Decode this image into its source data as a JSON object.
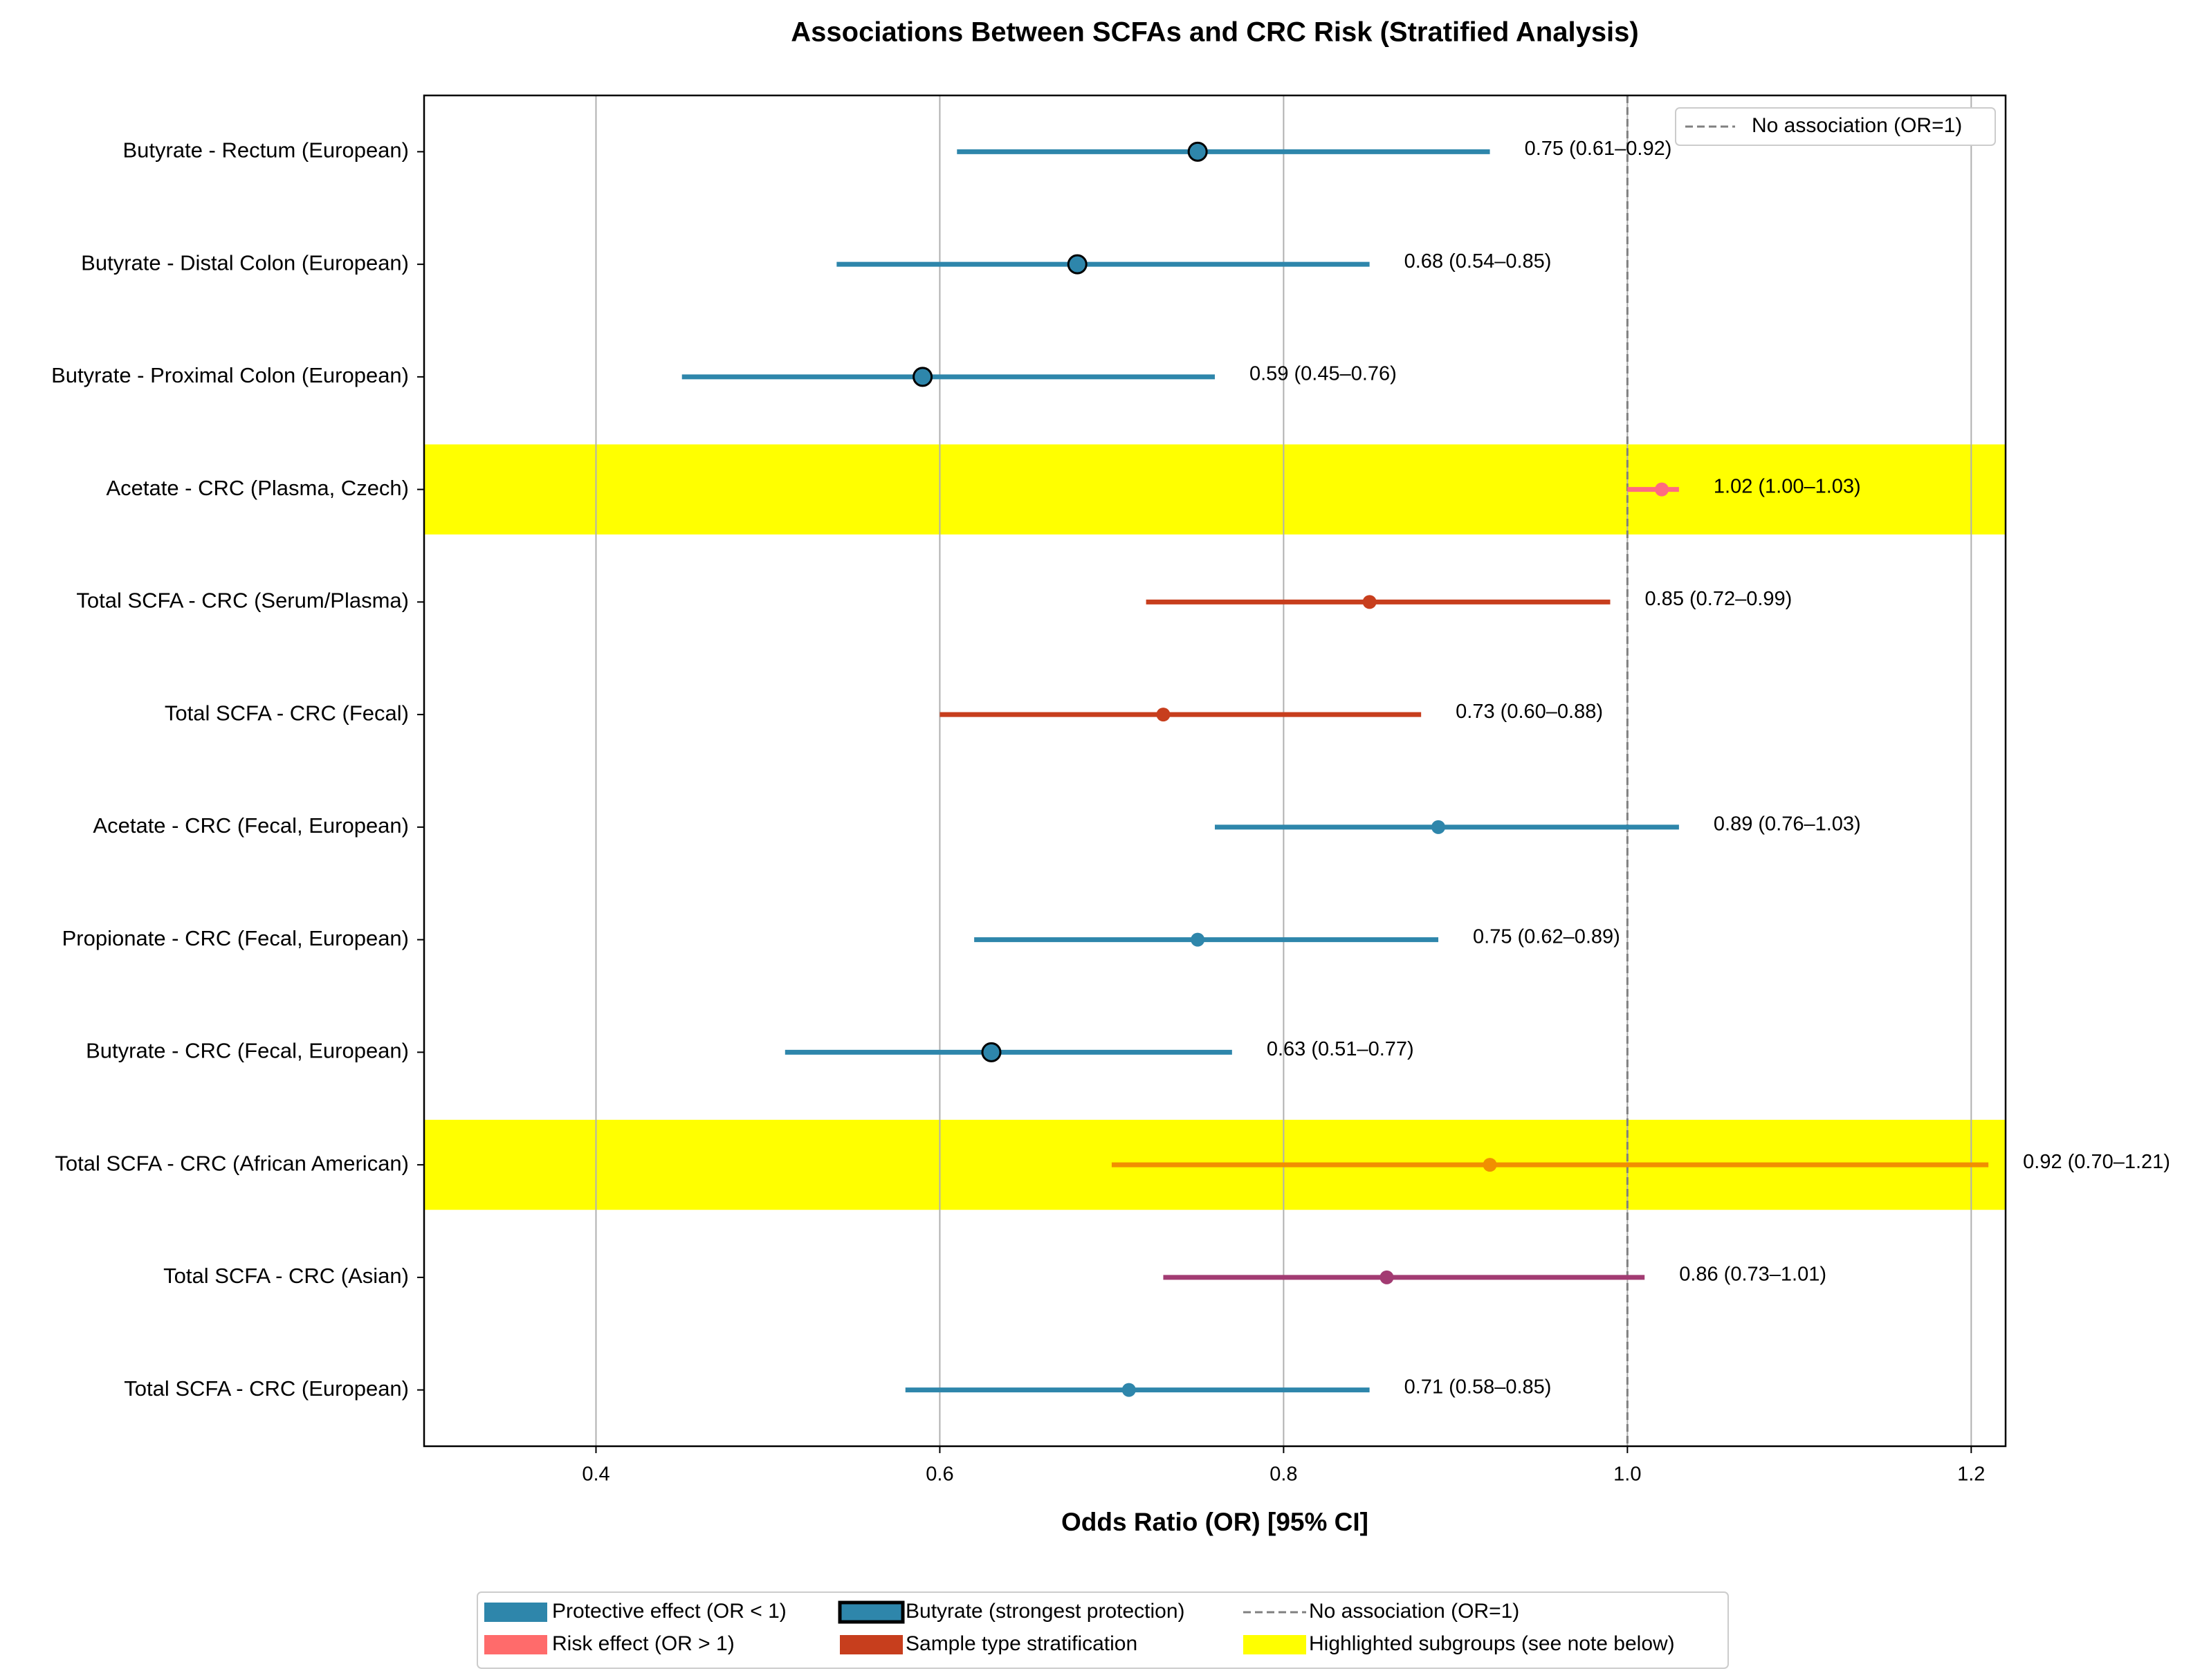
{
  "chart_data": {
    "type": "forest",
    "title": "Associations Between SCFAs and CRC Risk (Stratified Analysis)",
    "xlabel": "Odds Ratio (OR) [95% CI]",
    "categories": [
      "Butyrate - Rectum (European)",
      "Butyrate - Distal Colon (European)",
      "Butyrate - Proximal Colon (European)",
      "Acetate - CRC (Plasma, Czech)",
      "Total SCFA - CRC (Serum/Plasma)",
      "Total SCFA - CRC (Fecal)",
      "Acetate - CRC (Fecal, European)",
      "Propionate - CRC (Fecal, European)",
      "Butyrate - CRC (Fecal, European)",
      "Total SCFA - CRC (African American)",
      "Total SCFA - CRC (Asian)",
      "Total SCFA - CRC (European)"
    ],
    "values": [
      0.75,
      0.68,
      0.59,
      1.02,
      0.85,
      0.73,
      0.89,
      0.75,
      0.63,
      0.92,
      0.86,
      0.71
    ],
    "lower": [
      0.61,
      0.54,
      0.45,
      1.0,
      0.72,
      0.6,
      0.76,
      0.62,
      0.51,
      0.7,
      0.73,
      0.58
    ],
    "upper": [
      0.92,
      0.85,
      0.76,
      1.03,
      0.99,
      0.88,
      1.03,
      0.89,
      0.77,
      1.21,
      1.01,
      0.85
    ],
    "value_labels": [
      "0.75 (0.61–0.92)",
      "0.68 (0.54–0.85)",
      "0.59 (0.45–0.76)",
      "1.02 (1.00–1.03)",
      "0.85 (0.72–0.99)",
      "0.73 (0.60–0.88)",
      "0.89 (0.76–1.03)",
      "0.75 (0.62–0.89)",
      "0.63 (0.51–0.77)",
      "0.92 (0.70–1.21)",
      "0.86 (0.73–1.01)",
      "0.71 (0.58–0.85)"
    ],
    "colors": [
      "#2e86ab",
      "#2e86ab",
      "#2e86ab",
      "#ff6b81",
      "#c73e1d",
      "#c73e1d",
      "#2e86ab",
      "#2e86ab",
      "#2e86ab",
      "#f18f01",
      "#a23b72",
      "#2e86ab"
    ],
    "emphasized": [
      true,
      true,
      true,
      false,
      false,
      false,
      false,
      false,
      true,
      false,
      false,
      false
    ],
    "highlighted": [
      false,
      false,
      false,
      true,
      false,
      false,
      false,
      false,
      false,
      true,
      false,
      false
    ],
    "highlight_color": "#ffff00",
    "reference_line": 1,
    "reference_label": "No association (OR=1)",
    "xlim": [
      0.3,
      1.22
    ],
    "xticks": [
      {
        "value": 0.4,
        "label": "0.4"
      },
      {
        "value": 0.6,
        "label": "0.6"
      },
      {
        "value": 0.8,
        "label": "0.8"
      },
      {
        "value": 1.0,
        "label": "1.0"
      },
      {
        "value": 1.2,
        "label": "1.2"
      }
    ],
    "grid": true,
    "legend": [
      {
        "name": "Protective effect (OR < 1)",
        "color": "#2e86ab"
      },
      {
        "name": "Risk effect (OR > 1)",
        "color": "#ff6b6b"
      },
      {
        "name": "Butyrate (strongest protection)",
        "color": "#2e86ab"
      },
      {
        "name": "Sample type stratification",
        "color": "#c73e1d"
      },
      {
        "name": "Highlighted subgroups (see note below)",
        "color": "#ffff00"
      }
    ]
  }
}
